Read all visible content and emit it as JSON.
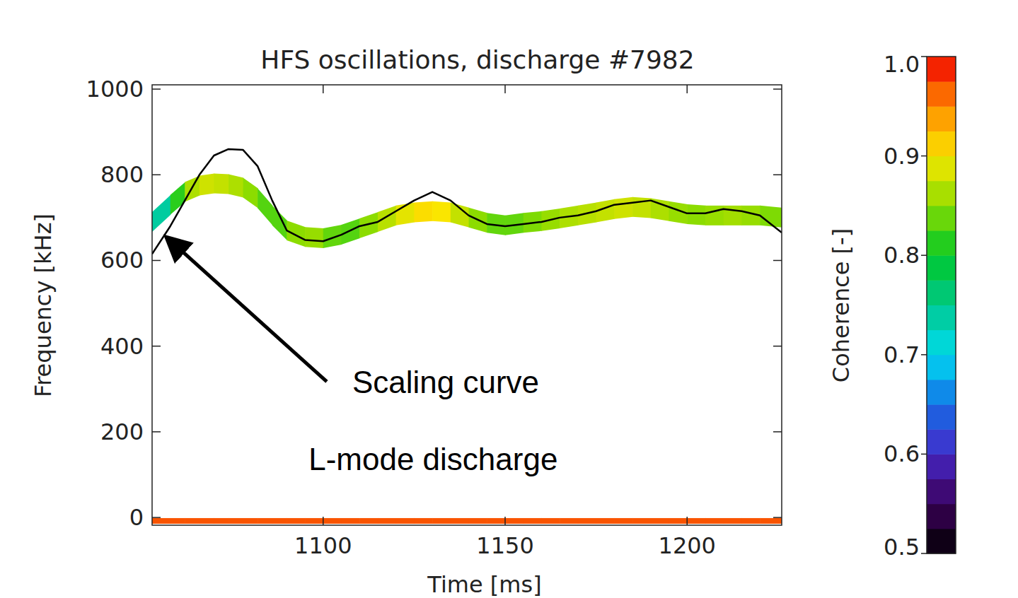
{
  "chart_data": {
    "type": "line",
    "title": "HFS oscillations, discharge #7982",
    "x_label": "Time [ms]",
    "y_label": "Frequency [kHz]",
    "xlim": [
      1053,
      1226
    ],
    "ylim": [
      -18,
      1010
    ],
    "xticks": [
      1100,
      1150,
      1200
    ],
    "yticks": [
      0,
      200,
      400,
      600,
      800,
      1000
    ],
    "x": [
      1053,
      1058,
      1062,
      1066,
      1070,
      1074,
      1078,
      1082,
      1086,
      1090,
      1095,
      1100,
      1105,
      1110,
      1115,
      1120,
      1125,
      1130,
      1135,
      1140,
      1145,
      1150,
      1155,
      1160,
      1165,
      1170,
      1175,
      1180,
      1185,
      1190,
      1195,
      1200,
      1205,
      1210,
      1215,
      1220,
      1226
    ],
    "series": [
      {
        "type": "line",
        "color": "#000000",
        "values": [
          615,
          680,
          740,
          800,
          845,
          860,
          858,
          820,
          740,
          670,
          648,
          645,
          660,
          680,
          690,
          715,
          740,
          760,
          740,
          705,
          685,
          680,
          685,
          690,
          700,
          705,
          715,
          730,
          735,
          740,
          725,
          710,
          710,
          720,
          715,
          705,
          665
        ]
      },
      {
        "type": "band",
        "values": [
          690,
          730,
          760,
          775,
          780,
          778,
          770,
          745,
          705,
          670,
          655,
          652,
          660,
          675,
          690,
          705,
          712,
          715,
          712,
          700,
          688,
          682,
          688,
          692,
          698,
          705,
          712,
          720,
          725,
          722,
          715,
          708,
          705,
          705,
          705,
          705,
          700
        ],
        "coherence": [
          0.7,
          0.78,
          0.85,
          0.88,
          0.88,
          0.87,
          0.86,
          0.84,
          0.82,
          0.84,
          0.86,
          0.85,
          0.82,
          0.84,
          0.86,
          0.88,
          0.9,
          0.91,
          0.89,
          0.86,
          0.84,
          0.83,
          0.84,
          0.85,
          0.86,
          0.87,
          0.87,
          0.88,
          0.88,
          0.87,
          0.86,
          0.85,
          0.85,
          0.86,
          0.86,
          0.85,
          0.84
        ]
      },
      {
        "type": "band",
        "values": [
          -8,
          -8,
          -8,
          -8,
          -8,
          -8,
          -8,
          -8,
          -8,
          -8,
          -8,
          -8,
          -8,
          -8,
          -8,
          -8,
          -8,
          -8,
          -8,
          -8,
          -8,
          -8,
          -8,
          -8,
          -8,
          -8,
          -8,
          -8,
          -8,
          -8,
          -8,
          -8,
          -8,
          -8,
          -8,
          -8,
          -8
        ],
        "coherence": [
          0.97,
          0.97,
          0.97,
          0.97,
          0.97,
          0.97,
          0.97,
          0.97,
          0.97,
          0.97,
          0.97,
          0.97,
          0.97,
          0.97,
          0.97,
          0.97,
          0.97,
          0.97,
          0.97,
          0.97,
          0.97,
          0.97,
          0.97,
          0.97,
          0.97,
          0.97,
          0.97,
          0.97,
          0.97,
          0.97,
          0.97,
          0.97,
          0.97,
          0.97,
          0.97,
          0.97,
          0.97
        ]
      }
    ],
    "annotations": [
      {
        "text": "Scaling curve",
        "x": 1108,
        "y": 290,
        "arrow_from_x": 1101,
        "arrow_from_y": 317,
        "arrow_to_x": 1057.5,
        "arrow_to_y": 650
      },
      {
        "text": "L-mode discharge",
        "x": 1096,
        "y": 110
      }
    ],
    "colorbar": {
      "label": "Coherence [-]",
      "range": [
        0.5,
        1.0
      ],
      "ticks": [
        0.5,
        0.6,
        0.7,
        0.8,
        0.9,
        {
          "value": 1.0,
          "label": "1.0"
        }
      ]
    }
  }
}
